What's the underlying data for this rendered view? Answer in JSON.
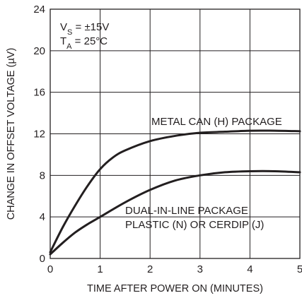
{
  "chart_data": {
    "type": "line",
    "title": "",
    "xlabel": "TIME AFTER POWER ON (MINUTES)",
    "ylabel": "CHANGE IN OFFSET VOLTAGE (µV)",
    "xlim": [
      0,
      5
    ],
    "ylim": [
      0,
      24
    ],
    "x_ticks": [
      "0",
      "1",
      "2",
      "3",
      "4",
      "5"
    ],
    "y_ticks": [
      "0",
      "4",
      "8",
      "12",
      "16",
      "20",
      "24"
    ],
    "grid": true,
    "conditions": {
      "vs": {
        "symbol": "V",
        "subscript": "S",
        "value": " = ±15V"
      },
      "ta": {
        "symbol": "T",
        "subscript": "A",
        "value": " = 25°C"
      }
    },
    "series": [
      {
        "name": "METAL CAN (H) PACKAGE",
        "x": [
          0,
          0.25,
          0.5,
          0.75,
          1.0,
          1.25,
          1.5,
          2.0,
          2.5,
          3.0,
          3.5,
          4.0,
          4.5,
          5.0
        ],
        "y": [
          0.6,
          3.0,
          5.1,
          7.0,
          8.6,
          9.7,
          10.4,
          11.3,
          11.8,
          12.1,
          12.2,
          12.3,
          12.3,
          12.25
        ]
      },
      {
        "name": "DUAL-IN-LINE PACKAGE PLASTIC (N) OR CERDIP (J)",
        "x": [
          0,
          0.25,
          0.5,
          0.75,
          1.0,
          1.5,
          2.0,
          2.5,
          3.0,
          3.5,
          4.0,
          4.5,
          5.0
        ],
        "y": [
          0.4,
          1.5,
          2.5,
          3.3,
          4.0,
          5.4,
          6.6,
          7.5,
          8.0,
          8.3,
          8.4,
          8.4,
          8.3
        ]
      }
    ],
    "annotations": {
      "metal_can": [
        "METAL CAN (H) PACKAGE"
      ],
      "dip": [
        "DUAL-IN-LINE PACKAGE",
        "PLASTIC (N) OR CERDIP (J)"
      ]
    }
  }
}
